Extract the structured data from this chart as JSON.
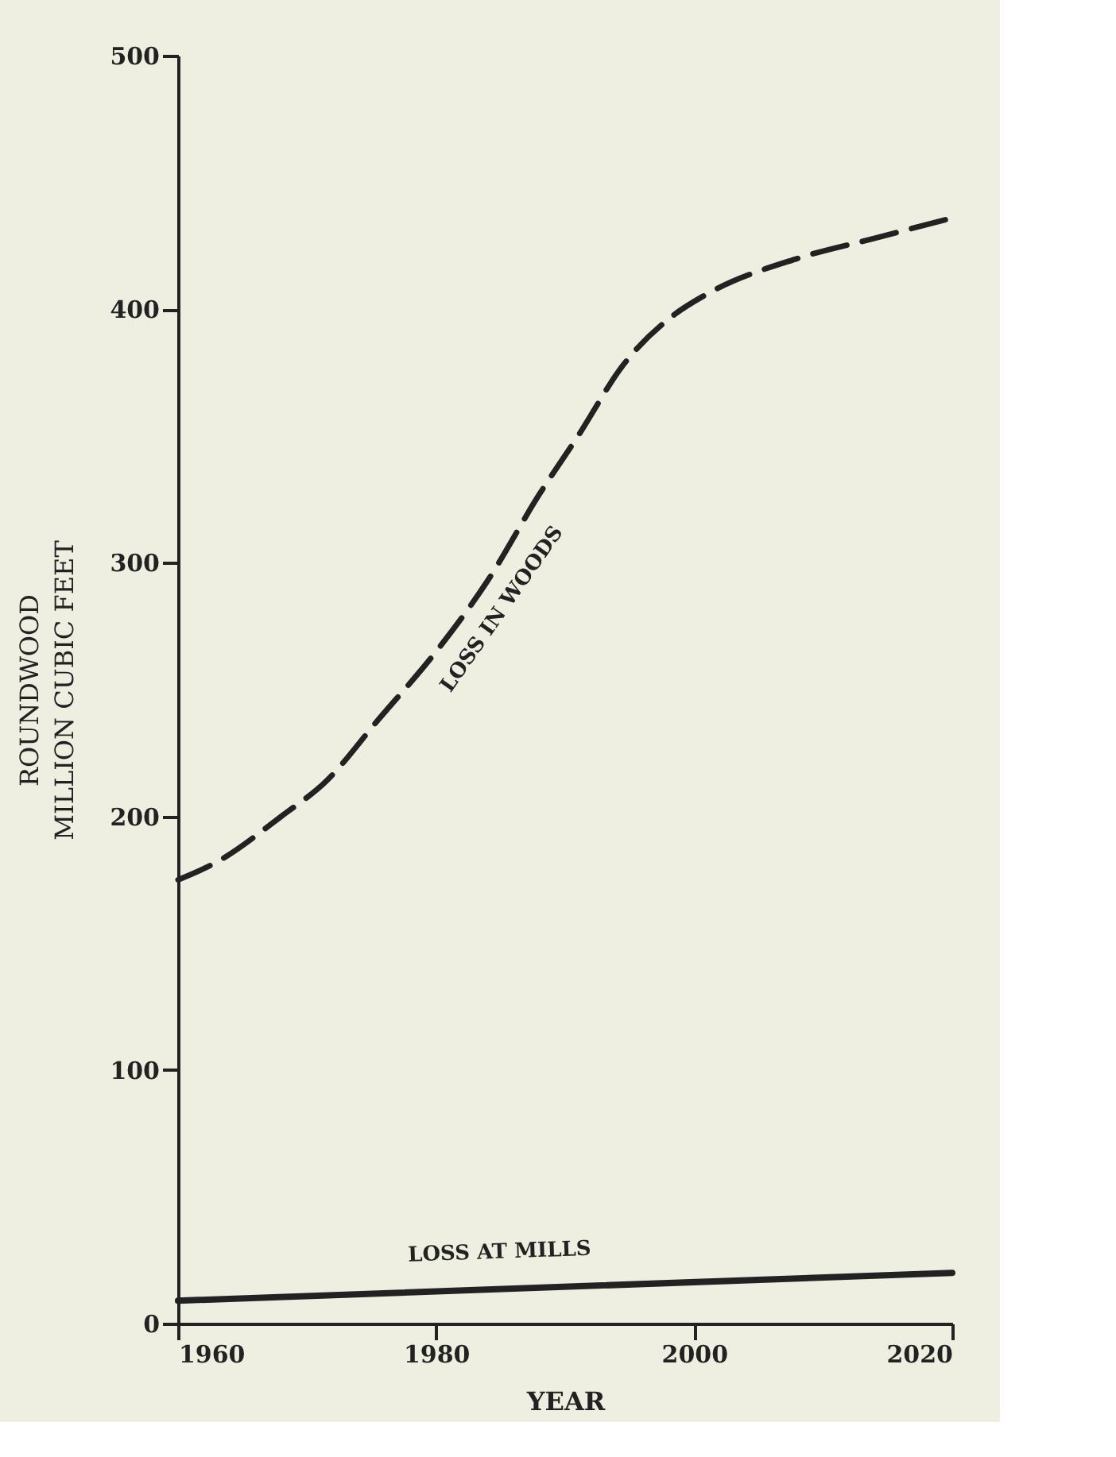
{
  "chart_data": {
    "type": "line",
    "xlabel": "YEAR",
    "ylabel": "ROUNDWOOD\nMILLION CUBIC FEET",
    "xlim": [
      1960,
      2020
    ],
    "xticks": [
      1960,
      1980,
      2000,
      2020
    ],
    "ylim": [
      0,
      500
    ],
    "yticks": [
      0,
      100,
      200,
      300,
      400,
      500
    ],
    "grid": false,
    "series": [
      {
        "name": "LOSS IN WOODS",
        "color": "#222222",
        "line_style": "dashed",
        "x": [
          1960,
          1963,
          1968,
          1971.5,
          1975.5,
          1980,
          1984,
          1988,
          1991,
          1994.5,
          1998.5,
          2001,
          2008,
          2014,
          2020
        ],
        "values": [
          175,
          182,
          200,
          214,
          238,
          265,
          293,
          327,
          350,
          378,
          398,
          406,
          420,
          428,
          436
        ]
      },
      {
        "name": "LOSS AT MILLS",
        "color": "#222222",
        "line_style": "solid",
        "x": [
          1960,
          2020
        ],
        "values": [
          9,
          20
        ]
      }
    ]
  }
}
